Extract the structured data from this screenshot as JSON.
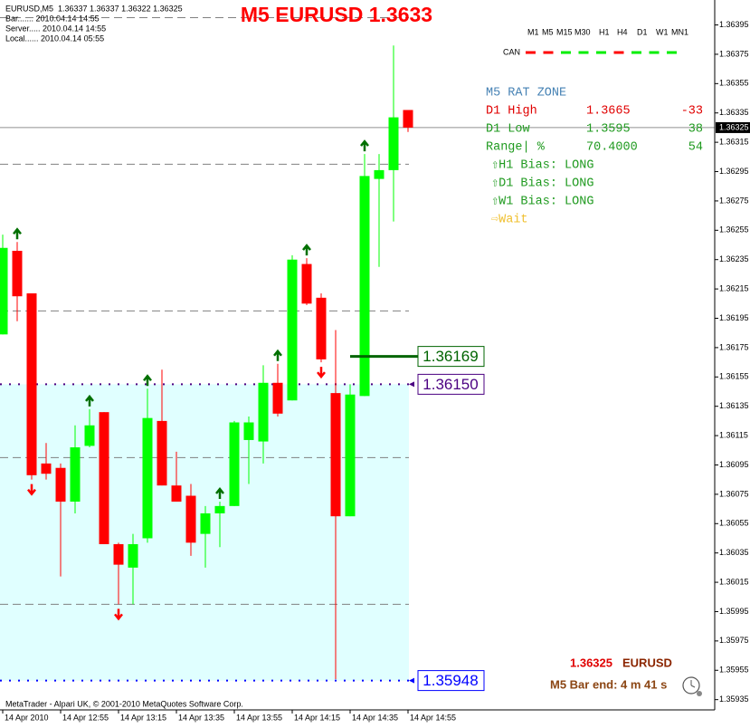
{
  "chart_data": {
    "type": "candlestick",
    "title": "M5 EURUSD 1.3633",
    "info": [
      "EURUSD,M5  1.36337 1.36337 1.36322 1.36325",
      "Bar....... 2010.04.14 14:55",
      "Server..... 2010.04.14 14:55",
      "Local...... 2010.04.14 05:55"
    ],
    "categories": [
      "14 Apr 2010",
      null,
      null,
      null,
      "14 Apr 12:55",
      null,
      null,
      null,
      "14 Apr 13:15",
      null,
      null,
      null,
      "14 Apr 13:35",
      null,
      null,
      null,
      "14 Apr 13:55",
      null,
      null,
      null,
      "14 Apr 14:15",
      null,
      null,
      null,
      "14 Apr 14:35",
      null,
      null,
      null,
      "14 Apr 14:55"
    ],
    "open": [
      1.36184,
      1.36241,
      1.36212,
      1.36096,
      1.36093,
      1.3607,
      1.36108,
      1.36131,
      1.36041,
      1.36025,
      1.36045,
      1.36125,
      1.36081,
      1.36074,
      1.36048,
      1.36062,
      1.36067,
      1.36112,
      1.36111,
      1.36151,
      1.36139,
      1.36232,
      1.36209,
      1.36144,
      1.3606,
      1.36142,
      1.3629,
      1.36296,
      1.36337
    ],
    "high": [
      1.36252,
      1.36247,
      1.36212,
      1.3611,
      1.36096,
      1.36122,
      1.36133,
      1.36131,
      1.36042,
      1.36048,
      1.36147,
      1.3616,
      1.36104,
      1.36082,
      1.36067,
      1.3607,
      1.36125,
      1.36128,
      1.36163,
      1.36164,
      1.36238,
      1.36236,
      1.36212,
      1.36187,
      1.3615,
      1.36307,
      1.36307,
      1.36381,
      1.36337
    ],
    "low": [
      1.36184,
      1.36193,
      1.36085,
      1.36085,
      1.36019,
      1.36062,
      1.36107,
      1.36041,
      1.36,
      1.36,
      1.36042,
      1.36081,
      1.3607,
      1.36033,
      1.36025,
      1.36039,
      1.36067,
      1.36082,
      1.36096,
      1.36128,
      1.36139,
      1.36204,
      1.36165,
      1.35949,
      1.3606,
      1.36142,
      1.3623,
      1.36261,
      1.36322
    ],
    "close": [
      1.36243,
      1.3621,
      1.36088,
      1.36089,
      1.3607,
      1.36107,
      1.36122,
      1.36041,
      1.36027,
      1.36041,
      1.36127,
      1.36081,
      1.3607,
      1.36042,
      1.36062,
      1.36067,
      1.36124,
      1.36124,
      1.36151,
      1.3613,
      1.36235,
      1.36205,
      1.36167,
      1.3606,
      1.36143,
      1.36292,
      1.36296,
      1.36332,
      1.36325
    ],
    "up_color": "#00ff00",
    "down_color": "#ff0000",
    "signals": [
      null,
      "up",
      "down",
      null,
      null,
      null,
      "up",
      null,
      "down",
      null,
      "up",
      null,
      null,
      null,
      null,
      "up",
      null,
      null,
      null,
      "up",
      null,
      "up",
      "down",
      null,
      null,
      "up",
      null,
      null,
      null
    ],
    "signal_colors": {
      "up": "#007000",
      "down": "#ff0000"
    },
    "ylim": [
      1.35928,
      1.36412
    ],
    "yticks": [
      1.36395,
      1.36375,
      1.36355,
      1.36335,
      1.36315,
      1.36295,
      1.36275,
      1.36255,
      1.36235,
      1.36215,
      1.36195,
      1.36175,
      1.36155,
      1.36135,
      1.36115,
      1.36095,
      1.36075,
      1.36055,
      1.36035,
      1.36015,
      1.35995,
      1.35975,
      1.35955,
      1.35935
    ],
    "levels": [
      1.364,
      1.363,
      1.362,
      1.361,
      1.36
    ],
    "last_price": 1.36325,
    "zone": {
      "top": {
        "value": 1.3615,
        "label": "1.36150"
      },
      "bottom": 1.35948,
      "color": "#e0ffff",
      "top_color": "#4b0082",
      "bottom_color": "#0000ff"
    },
    "marker": {
      "value": 1.36169,
      "color": "#006400"
    },
    "timeframes": [
      {
        "name": "M1",
        "color": "#ff0000"
      },
      {
        "name": "M5",
        "color": "#ff0000"
      },
      {
        "name": "M15",
        "color": "#00ee00"
      },
      {
        "name": "M30",
        "color": "#00ee00"
      },
      {
        "name": "H1",
        "color": "#00ee00"
      },
      {
        "name": "H4",
        "color": "#ff0000"
      },
      {
        "name": "D1",
        "color": "#00ee00"
      },
      {
        "name": "W1",
        "color": "#00ee00"
      },
      {
        "name": "MN1",
        "color": "#00ee00"
      }
    ],
    "timeframe_row": "CAN",
    "panel": {
      "heading": "M5 RAT ZONE",
      "rows": [
        [
          "D1 High",
          "1.3665",
          "-33"
        ],
        [
          "D1 Low",
          "1.3595",
          "38"
        ],
        [
          "Range| %",
          "70.4000",
          "54"
        ]
      ],
      "row_colors": [
        "#e00000",
        "#1f9a1f",
        "#1f9a1f"
      ],
      "bias": [
        "⇧H1 Bias: LONG",
        "⇧D1 Bias: LONG",
        "⇧W1 Bias: LONG"
      ],
      "status": "⇨Wait"
    },
    "symbol": "EURUSD",
    "bar_end": "M5 Bar end: 4 m 41 s",
    "copyright": "MetaTrader - Alpari UK, © 2001-2010 MetaQuotes Software Corp."
  }
}
